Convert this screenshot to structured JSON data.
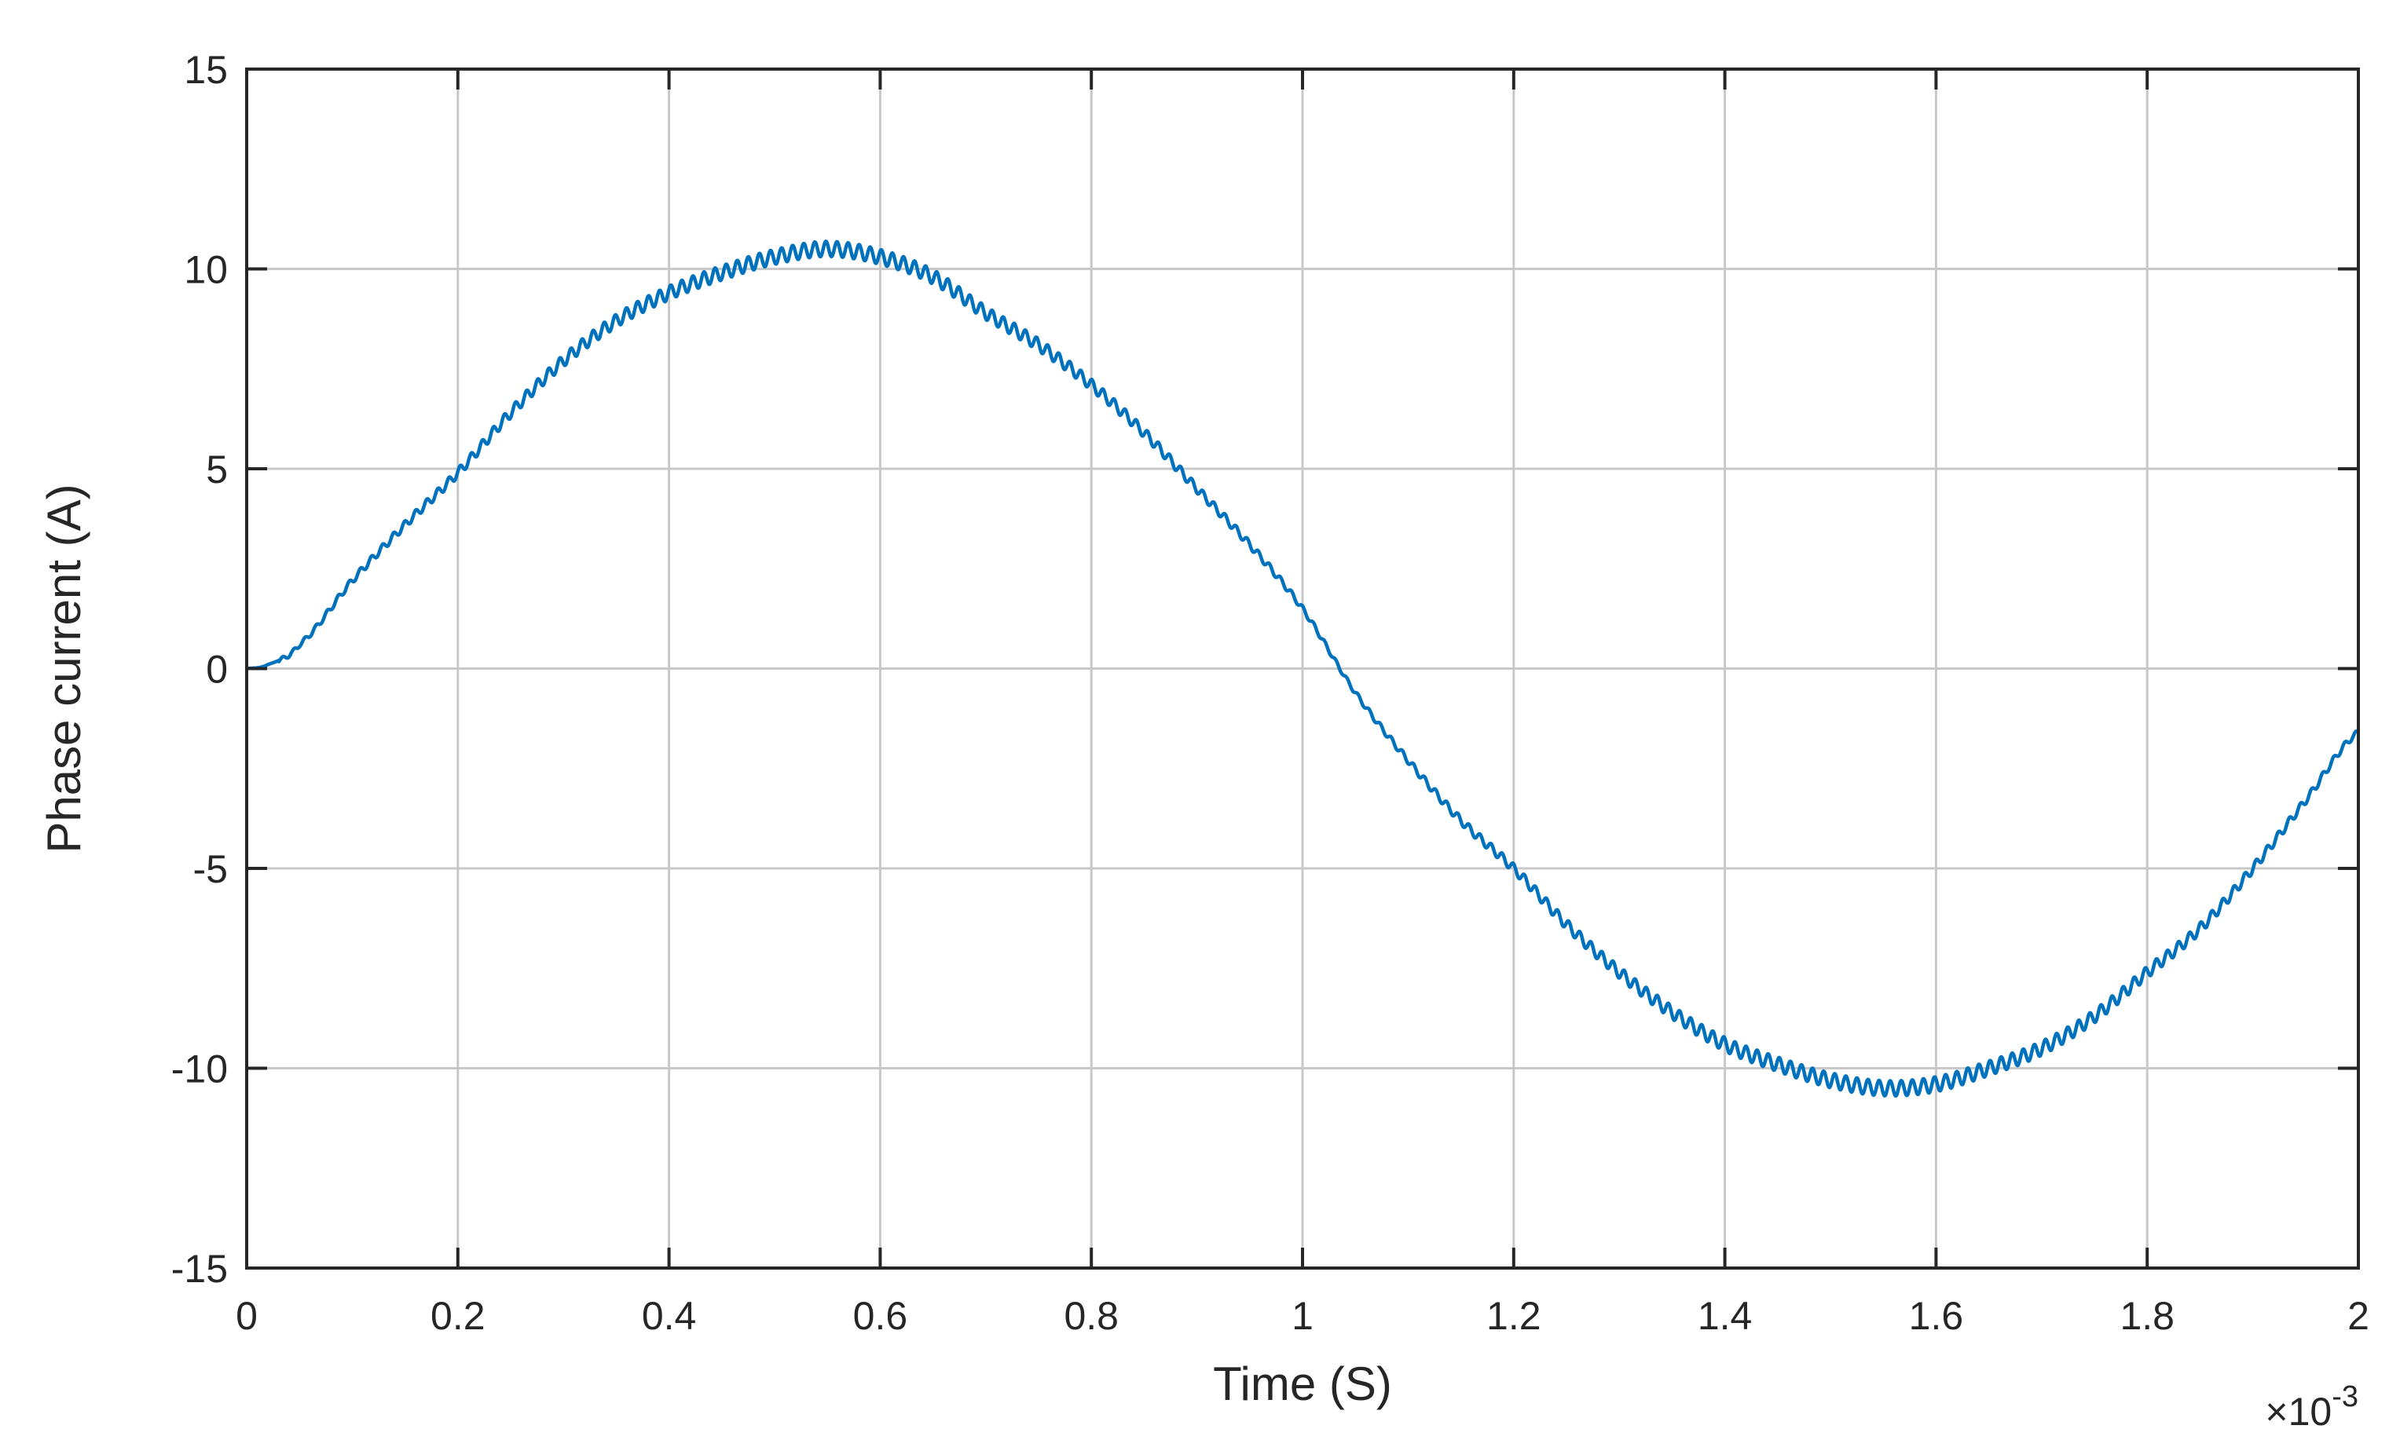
{
  "chart_data": {
    "type": "line",
    "title": "",
    "xlabel": "Time (S)",
    "ylabel": "Phase current (A)",
    "x_multiplier_label": "×10",
    "x_multiplier_exponent": "-3",
    "xlim": [
      0,
      2
    ],
    "ylim": [
      -15,
      15
    ],
    "grid": true,
    "legend": "none",
    "xticks": [
      0,
      0.2,
      0.4,
      0.6,
      0.8,
      1,
      1.2,
      1.4,
      1.6,
      1.8,
      2
    ],
    "xtick_labels": [
      "0",
      "0.2",
      "0.4",
      "0.6",
      "0.8",
      "1",
      "1.2",
      "1.4",
      "1.6",
      "1.8",
      "2"
    ],
    "yticks": [
      15,
      10,
      5,
      0,
      -5,
      -10,
      -15
    ],
    "ytick_labels": [
      "15",
      "10",
      "5",
      "0",
      "-5",
      "-10",
      "-15"
    ],
    "series": [
      {
        "color": "#0072bd",
        "x": [
          0,
          0.02,
          0.05,
          0.1,
          0.15,
          0.2,
          0.25,
          0.3,
          0.35,
          0.4,
          0.45,
          0.5,
          0.55,
          0.6,
          0.65,
          0.7,
          0.75,
          0.8,
          0.85,
          0.9,
          0.95,
          1.0,
          1.05,
          1.1,
          1.15,
          1.2,
          1.25,
          1.3,
          1.35,
          1.4,
          1.45,
          1.5,
          1.55,
          1.6,
          1.65,
          1.7,
          1.75,
          1.8,
          1.85,
          1.9,
          1.95,
          2.0
        ],
        "y": [
          0,
          0.1,
          0.6,
          2.2,
          3.6,
          4.9,
          6.4,
          7.7,
          8.7,
          9.4,
          9.9,
          10.3,
          10.5,
          10.3,
          9.8,
          8.9,
          8.1,
          7.1,
          5.9,
          4.5,
          3.1,
          1.5,
          -0.6,
          -2.3,
          -3.8,
          -5.0,
          -6.4,
          -7.6,
          -8.6,
          -9.4,
          -9.9,
          -10.3,
          -10.5,
          -10.4,
          -10.0,
          -9.5,
          -8.7,
          -7.6,
          -6.5,
          -5.0,
          -3.3,
          -1.6
        ]
      }
    ]
  }
}
